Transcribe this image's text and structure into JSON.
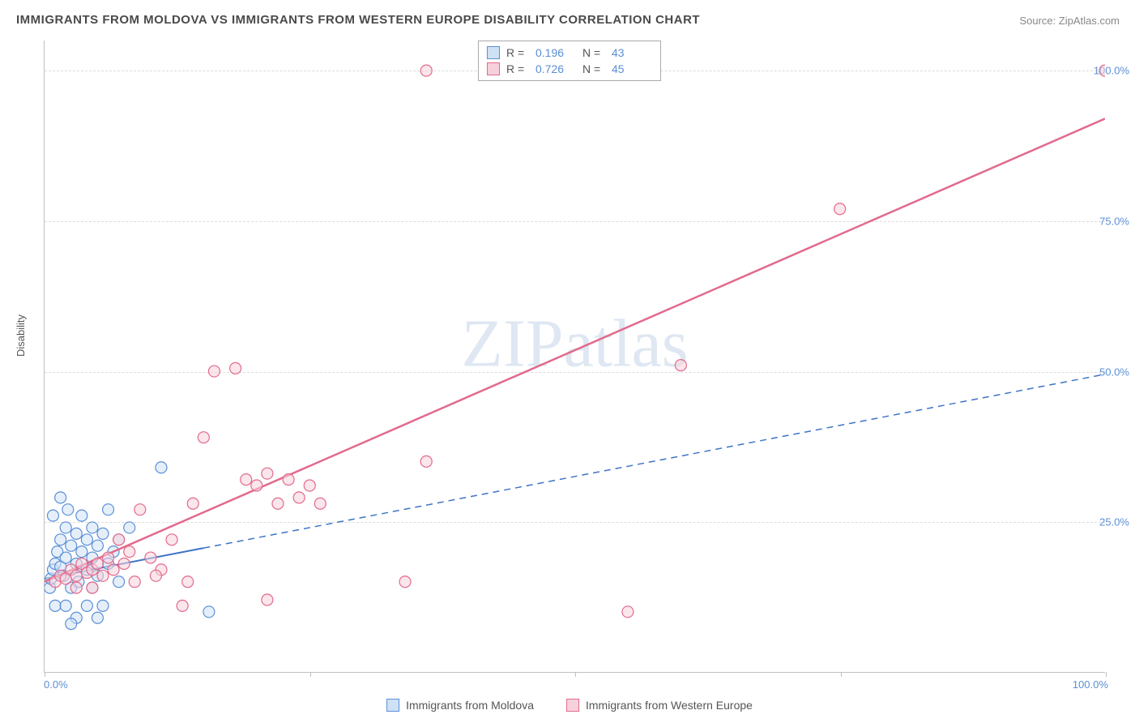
{
  "title": "IMMIGRANTS FROM MOLDOVA VS IMMIGRANTS FROM WESTERN EUROPE DISABILITY CORRELATION CHART",
  "source": "Source: ZipAtlas.com",
  "ylabel": "Disability",
  "watermark": "ZIPatlas",
  "chart": {
    "type": "scatter",
    "xlim": [
      0,
      100
    ],
    "ylim": [
      0,
      105
    ],
    "x_ticks": [
      0,
      25,
      50,
      75,
      100
    ],
    "y_ticks": [
      25,
      50,
      75,
      100
    ],
    "y_tick_labels": [
      "25.0%",
      "50.0%",
      "75.0%",
      "100.0%"
    ],
    "x_tick_labels_shown": {
      "0": "0.0%",
      "100": "100.0%"
    },
    "grid_color": "#dcdcdc",
    "axis_color": "#bfbfbf",
    "background_color": "#ffffff",
    "tick_label_color": "#5b8fd6",
    "marker_radius": 7,
    "marker_stroke_width": 1.2,
    "series": [
      {
        "name": "Immigrants from Moldova",
        "fill": "#cfe1f5",
        "stroke": "#5b8fd6",
        "fill_opacity": 0.55,
        "R": "0.196",
        "N": "43",
        "points": [
          [
            0.5,
            14
          ],
          [
            0.6,
            15.5
          ],
          [
            0.8,
            17
          ],
          [
            1.0,
            18
          ],
          [
            1.2,
            20
          ],
          [
            1.5,
            17.5
          ],
          [
            1.5,
            22
          ],
          [
            1.8,
            16
          ],
          [
            2.0,
            19
          ],
          [
            2.0,
            24
          ],
          [
            2.2,
            27
          ],
          [
            2.5,
            21
          ],
          [
            2.5,
            14
          ],
          [
            3.0,
            23
          ],
          [
            3.0,
            18
          ],
          [
            3.2,
            15
          ],
          [
            3.5,
            20
          ],
          [
            3.5,
            26
          ],
          [
            4.0,
            22
          ],
          [
            4.0,
            17
          ],
          [
            4.5,
            19
          ],
          [
            4.5,
            24
          ],
          [
            5.0,
            16
          ],
          [
            5.0,
            21
          ],
          [
            5.5,
            23
          ],
          [
            6.0,
            18
          ],
          [
            6.0,
            27
          ],
          [
            6.5,
            20
          ],
          [
            7.0,
            22
          ],
          [
            7.0,
            15
          ],
          [
            8.0,
            24
          ],
          [
            1.0,
            11
          ],
          [
            2.0,
            11
          ],
          [
            4.0,
            11
          ],
          [
            3.0,
            9
          ],
          [
            5.0,
            9
          ],
          [
            5.5,
            11
          ],
          [
            2.5,
            8
          ],
          [
            11.0,
            34
          ],
          [
            15.5,
            10
          ],
          [
            1.5,
            29
          ],
          [
            0.8,
            26
          ],
          [
            4.5,
            14
          ]
        ],
        "trend": {
          "type": "dashed_then_solid",
          "x_solid_end": 15,
          "y_at_0": 15.5,
          "y_at_100": 49.5,
          "color": "#3f74c6",
          "width": 2,
          "dash": "8 6"
        }
      },
      {
        "name": "Immigrants from Western Europe",
        "fill": "#f6d1db",
        "stroke": "#e26a8c",
        "fill_opacity": 0.55,
        "R": "0.726",
        "N": "45",
        "points": [
          [
            1.0,
            15
          ],
          [
            1.5,
            16
          ],
          [
            2.0,
            15.5
          ],
          [
            2.5,
            17
          ],
          [
            3.0,
            16
          ],
          [
            3.5,
            18
          ],
          [
            4.0,
            16.5
          ],
          [
            4.5,
            17
          ],
          [
            5.0,
            18
          ],
          [
            5.5,
            16
          ],
          [
            6.0,
            19
          ],
          [
            6.5,
            17
          ],
          [
            7.0,
            22
          ],
          [
            7.5,
            18
          ],
          [
            8.0,
            20
          ],
          [
            9.0,
            27
          ],
          [
            10.0,
            19
          ],
          [
            11.0,
            17
          ],
          [
            12.0,
            22
          ],
          [
            13.0,
            11
          ],
          [
            14.0,
            28
          ],
          [
            15.0,
            39
          ],
          [
            16.0,
            50
          ],
          [
            18.0,
            50.5
          ],
          [
            19.0,
            32
          ],
          [
            20.0,
            31
          ],
          [
            21.0,
            33
          ],
          [
            22.0,
            28
          ],
          [
            23.0,
            32
          ],
          [
            24.0,
            29
          ],
          [
            25.0,
            31
          ],
          [
            26.0,
            28
          ],
          [
            13.5,
            15
          ],
          [
            21.0,
            12
          ],
          [
            34.0,
            15
          ],
          [
            36.0,
            35
          ],
          [
            36.0,
            100
          ],
          [
            55.0,
            10
          ],
          [
            60.0,
            51
          ],
          [
            75.0,
            77
          ],
          [
            100.0,
            100
          ],
          [
            3.0,
            14
          ],
          [
            4.5,
            14
          ],
          [
            8.5,
            15
          ],
          [
            10.5,
            16
          ]
        ],
        "trend": {
          "type": "solid",
          "y_at_0": 15,
          "y_at_100": 92,
          "color": "#e26a8c",
          "width": 2.5
        }
      }
    ]
  },
  "legend_top": {
    "rows": [
      {
        "swatch_fill": "#cfe1f5",
        "swatch_stroke": "#5b8fd6",
        "r_label": "R  =",
        "r_val": "0.196",
        "n_label": "N  =",
        "n_val": "43"
      },
      {
        "swatch_fill": "#f6d1db",
        "swatch_stroke": "#e26a8c",
        "r_label": "R  =",
        "r_val": "0.726",
        "n_label": "N  =",
        "n_val": "45"
      }
    ]
  },
  "legend_bottom": [
    {
      "swatch_fill": "#cfe1f5",
      "swatch_stroke": "#5b8fd6",
      "label": "Immigrants from Moldova"
    },
    {
      "swatch_fill": "#f6d1db",
      "swatch_stroke": "#e26a8c",
      "label": "Immigrants from Western Europe"
    }
  ]
}
